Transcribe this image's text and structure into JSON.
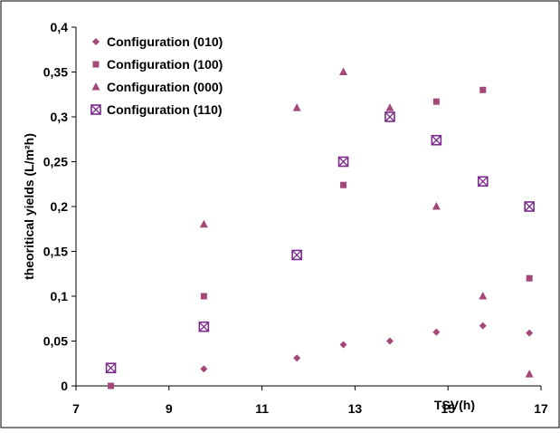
{
  "chart_data": {
    "type": "scatter",
    "xlabel": "TSV(h)",
    "ylabel": "theoritical yields (L/m²h)",
    "xlim": [
      7,
      17
    ],
    "ylim": [
      0,
      0.4
    ],
    "x_ticks": [
      "7",
      "9",
      "11",
      "13",
      "15",
      "17"
    ],
    "y_ticks": [
      "0",
      "0,05",
      "0,1",
      "0,15",
      "0,2",
      "0,25",
      "0,3",
      "0,35",
      "0,4"
    ],
    "grid": false,
    "legend_position": "top-left",
    "series": [
      {
        "name": "Configuration (010)",
        "marker": "diamond",
        "color": "#a4487a",
        "points": [
          [
            9.75,
            0.019
          ],
          [
            11.75,
            0.031
          ],
          [
            12.75,
            0.046
          ],
          [
            13.75,
            0.05
          ],
          [
            14.75,
            0.06
          ],
          [
            15.75,
            0.067
          ],
          [
            16.75,
            0.059
          ]
        ]
      },
      {
        "name": "Configuration (100)",
        "marker": "square",
        "color": "#a4487a",
        "points": [
          [
            7.75,
            0.0
          ],
          [
            9.75,
            0.1
          ],
          [
            12.75,
            0.224
          ],
          [
            14.75,
            0.317
          ],
          [
            15.75,
            0.33
          ],
          [
            16.75,
            0.12
          ]
        ]
      },
      {
        "name": "Configuration (000)",
        "marker": "triangle",
        "color": "#a4487a",
        "points": [
          [
            9.75,
            0.18
          ],
          [
            11.75,
            0.31
          ],
          [
            12.75,
            0.35
          ],
          [
            13.75,
            0.31
          ],
          [
            14.75,
            0.2
          ],
          [
            15.75,
            0.1
          ],
          [
            16.75,
            0.013
          ]
        ]
      },
      {
        "name": "Configuration (110)",
        "marker": "boxed-x",
        "color": "#7a2a8a",
        "points": [
          [
            7.75,
            0.02
          ],
          [
            9.75,
            0.066
          ],
          [
            11.75,
            0.146
          ],
          [
            12.75,
            0.25
          ],
          [
            13.75,
            0.3
          ],
          [
            14.75,
            0.274
          ],
          [
            15.75,
            0.228
          ],
          [
            16.75,
            0.2
          ]
        ]
      }
    ]
  }
}
